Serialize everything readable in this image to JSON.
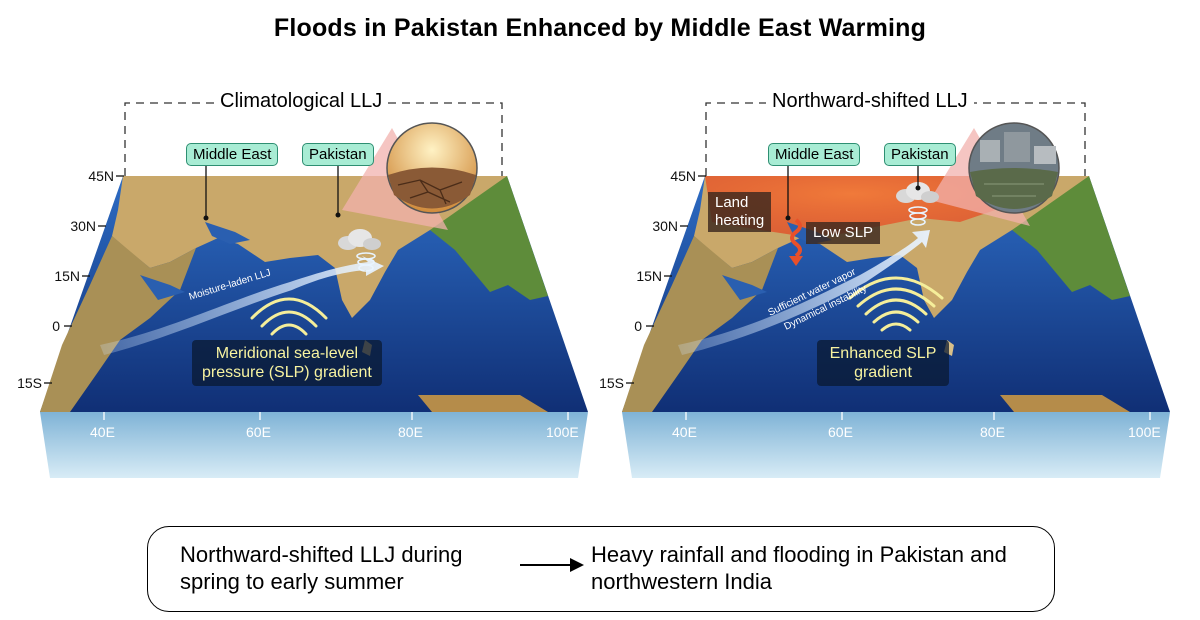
{
  "title": "Floods in Pakistan Enhanced by Middle East Warming",
  "panels": [
    {
      "title": "Climatological LLJ",
      "labels": {
        "middle_east": "Middle East",
        "pakistan": "Pakistan"
      },
      "latitudes": [
        "45N",
        "30N",
        "15N",
        "0",
        "15S"
      ],
      "longitudes": [
        "40E",
        "60E",
        "80E",
        "100E"
      ],
      "llj_label": "Moisture-laden LLJ",
      "gradient_label_lines": [
        "Meridional sea-level",
        "pressure (SLP) gradient"
      ],
      "inset_icon": "dry-cracked-earth-icon"
    },
    {
      "title": "Northward-shifted LLJ",
      "labels": {
        "middle_east": "Middle East",
        "pakistan": "Pakistan"
      },
      "latitudes": [
        "45N",
        "30N",
        "15N",
        "0",
        "15S"
      ],
      "longitudes": [
        "40E",
        "60E",
        "80E",
        "100E"
      ],
      "land_heating_lines": [
        "Land",
        "heating"
      ],
      "low_slp": "Low SLP",
      "vapor_label": "Sufficient water vapor",
      "instability_label": "Dynamical instability",
      "gradient_label_lines": [
        "Enhanced SLP",
        "gradient"
      ],
      "inset_icon": "flooded-town-icon"
    }
  ],
  "summary": {
    "cause": "Northward-shifted LLJ during spring to early summer",
    "effect": "Heavy rainfall and flooding in Pakistan and northwestern India"
  },
  "colors": {
    "label_fill": "#a8ecd4",
    "label_border": "#2e8f72",
    "ocean": "#1f4fa0",
    "land": "#c9a86a",
    "heating": "#e8502a",
    "gradient_text": "#f7f3a0"
  }
}
